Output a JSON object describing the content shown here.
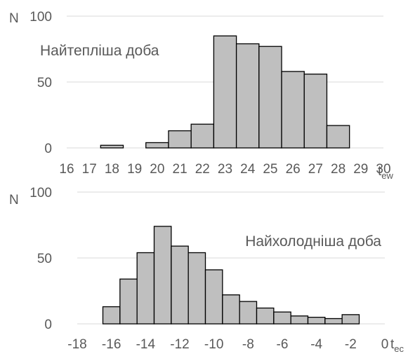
{
  "chart_data": [
    {
      "type": "bar",
      "annotation": "Найтепліша доба",
      "ylabel": "N",
      "xlabel_main": "t",
      "xlabel_sub": "ew",
      "ylim": [
        0,
        100
      ],
      "yticks": [
        0,
        50,
        100
      ],
      "xlim": [
        16,
        30
      ],
      "xticks": [
        16,
        17,
        18,
        19,
        20,
        21,
        22,
        23,
        24,
        25,
        26,
        27,
        28,
        29,
        30
      ],
      "bin_width": 1,
      "bins": [
        {
          "start": 17.5,
          "value": 2
        },
        {
          "start": 19.5,
          "value": 4
        },
        {
          "start": 20.5,
          "value": 13
        },
        {
          "start": 21.5,
          "value": 18
        },
        {
          "start": 22.5,
          "value": 85
        },
        {
          "start": 23.5,
          "value": 79
        },
        {
          "start": 24.5,
          "value": 77
        },
        {
          "start": 25.5,
          "value": 58
        },
        {
          "start": 26.5,
          "value": 56
        },
        {
          "start": 27.5,
          "value": 17
        }
      ],
      "grid": true,
      "bar_color": "#bfbfbf"
    },
    {
      "type": "bar",
      "annotation": "Найхолодніша доба",
      "ylabel": "N",
      "xlabel_main": "t",
      "xlabel_sub": "ec",
      "ylim": [
        0,
        100
      ],
      "yticks": [
        0,
        50,
        100
      ],
      "xlim": [
        -18,
        0
      ],
      "xticks": [
        -18,
        -16,
        -14,
        -12,
        -10,
        -8,
        -6,
        -4,
        -2,
        0
      ],
      "bin_width": 1,
      "bins": [
        {
          "start": -16.5,
          "value": 13
        },
        {
          "start": -15.5,
          "value": 34
        },
        {
          "start": -14.5,
          "value": 54
        },
        {
          "start": -13.5,
          "value": 74
        },
        {
          "start": -12.5,
          "value": 59
        },
        {
          "start": -11.5,
          "value": 54
        },
        {
          "start": -10.5,
          "value": 41
        },
        {
          "start": -9.5,
          "value": 22
        },
        {
          "start": -8.5,
          "value": 17
        },
        {
          "start": -7.5,
          "value": 12
        },
        {
          "start": -6.5,
          "value": 9
        },
        {
          "start": -5.5,
          "value": 6
        },
        {
          "start": -4.5,
          "value": 5
        },
        {
          "start": -3.5,
          "value": 4
        },
        {
          "start": -2.5,
          "value": 7
        }
      ],
      "grid": true,
      "bar_color": "#bfbfbf"
    }
  ]
}
